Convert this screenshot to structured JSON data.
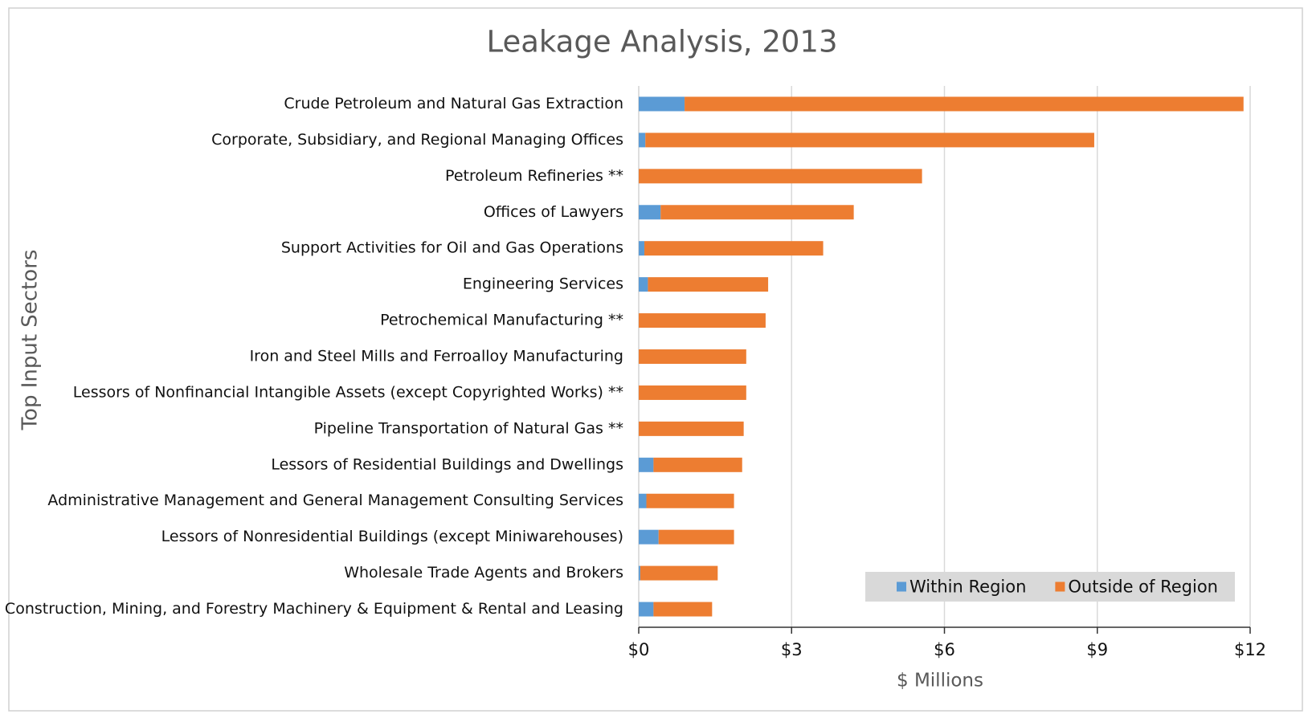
{
  "chart_data": {
    "type": "stacked_barh",
    "title": "Leakage Analysis, 2013",
    "xlabel": "$ Millions",
    "ylabel": "Top Input Sectors",
    "categories": [
      "Crude Petroleum and Natural Gas Extraction",
      "Corporate, Subsidiary, and Regional Managing Offices",
      "Petroleum Refineries **",
      "Offices of Lawyers",
      "Support Activities for Oil and Gas Operations",
      "Engineering Services",
      "Petrochemical Manufacturing **",
      "Iron and Steel Mills and Ferroalloy Manufacturing",
      "Lessors of Nonfinancial Intangible Assets (except Copyrighted Works) **",
      "Pipeline Transportation of Natural Gas **",
      "Lessors of Residential Buildings and Dwellings",
      "Administrative Management and General Management Consulting Services",
      "Lessors of Nonresidential Buildings (except Miniwarehouses)",
      "Wholesale Trade Agents and Brokers",
      "Construction, Mining, and Forestry Machinery & Equipment & Rental and Leasing"
    ],
    "series": [
      {
        "name": "Within Region",
        "color": "#5b9bd5",
        "values": [
          0.9,
          0.13,
          0,
          0.43,
          0.11,
          0.18,
          0,
          0,
          0,
          0,
          0.29,
          0.15,
          0.39,
          0.03,
          0.29
        ]
      },
      {
        "name": "Outside of Region",
        "color": "#ed7d31",
        "values": [
          10.97,
          8.81,
          5.56,
          3.79,
          3.51,
          2.36,
          2.49,
          2.11,
          2.11,
          2.06,
          1.74,
          1.72,
          1.48,
          1.52,
          1.15
        ]
      }
    ],
    "xlim": [
      0,
      12
    ],
    "xticks": [
      {
        "value": 0,
        "label": "$0"
      },
      {
        "value": 3,
        "label": "$3"
      },
      {
        "value": 6,
        "label": "$6"
      },
      {
        "value": 9,
        "label": "$9"
      },
      {
        "value": 12,
        "label": "$12"
      }
    ],
    "grid": true,
    "legend": "lower right"
  }
}
